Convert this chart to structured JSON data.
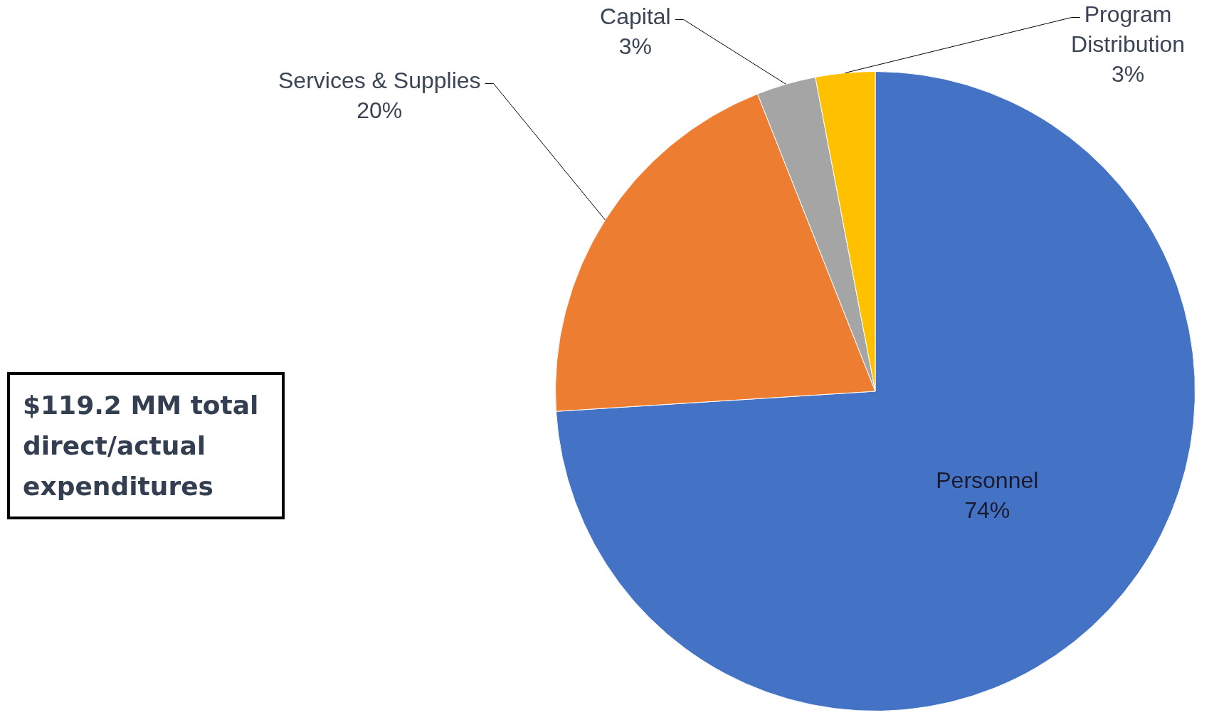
{
  "chart_data": {
    "type": "pie",
    "categories": [
      "Personnel",
      "Services & Supplies",
      "Capital",
      "Program Distribution"
    ],
    "values": [
      74,
      20,
      3,
      3
    ],
    "colors": [
      "#4472c4",
      "#ed7d31",
      "#a5a5a5",
      "#ffc000"
    ],
    "value_labels": [
      "74%",
      "20%",
      "3%",
      "3%"
    ],
    "legend": false,
    "annotations": [
      "$119.2 MM total direct/actual expenditures"
    ]
  }
}
